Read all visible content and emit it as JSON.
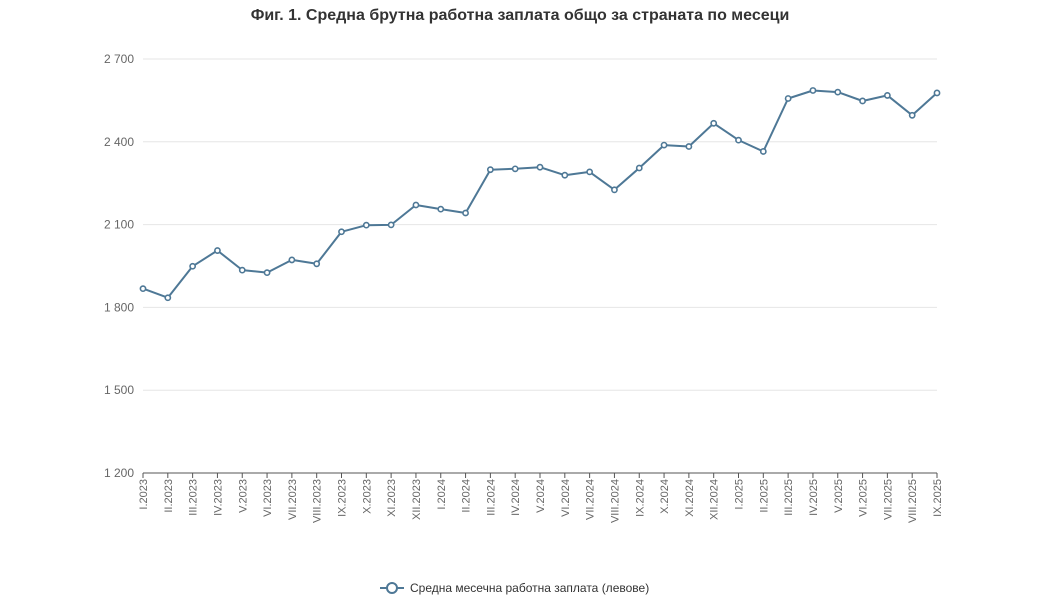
{
  "chart_data": {
    "type": "line",
    "title": "Фиг. 1. Средна брутна работна заплата общо за страната по месеци",
    "xlabel": "",
    "ylabel": "",
    "ylim": [
      1200,
      2700
    ],
    "yticks": [
      1200,
      1500,
      1800,
      2100,
      2400,
      2700
    ],
    "ytick_labels": [
      "1 200",
      "1 500",
      "1 800",
      "2 100",
      "2 400",
      "2 700"
    ],
    "grid": true,
    "legend_position": "bottom-center",
    "categories": [
      "I.2023",
      "II.2023",
      "III.2023",
      "IV.2023",
      "V.2023",
      "VI.2023",
      "VII.2023",
      "VIII.2023",
      "IX.2023",
      "X.2023",
      "XI.2023",
      "XII.2023",
      "I.2024",
      "II.2024",
      "III.2024",
      "IV.2024",
      "V.2024",
      "VI.2024",
      "VII.2024",
      "VIII.2024",
      "IX.2024",
      "X.2024",
      "XI.2024",
      "XII.2024",
      "I.2025",
      "II.2025",
      "III.2025",
      "IV.2025",
      "V.2025",
      "VI.2025",
      "VII.2025",
      "VIII.2025",
      "IX.2025"
    ],
    "series": [
      {
        "name": "Средна месечна работна заплата (левове)",
        "color": "#4e7896",
        "values": [
          1868,
          1835,
          1949,
          2006,
          1935,
          1926,
          1972,
          1958,
          2074,
          2098,
          2099,
          2171,
          2156,
          2142,
          2299,
          2302,
          2308,
          2279,
          2291,
          2226,
          2305,
          2388,
          2383,
          2467,
          2406,
          2365,
          2557,
          2586,
          2580,
          2548,
          2568,
          2496,
          2577
        ]
      }
    ]
  }
}
